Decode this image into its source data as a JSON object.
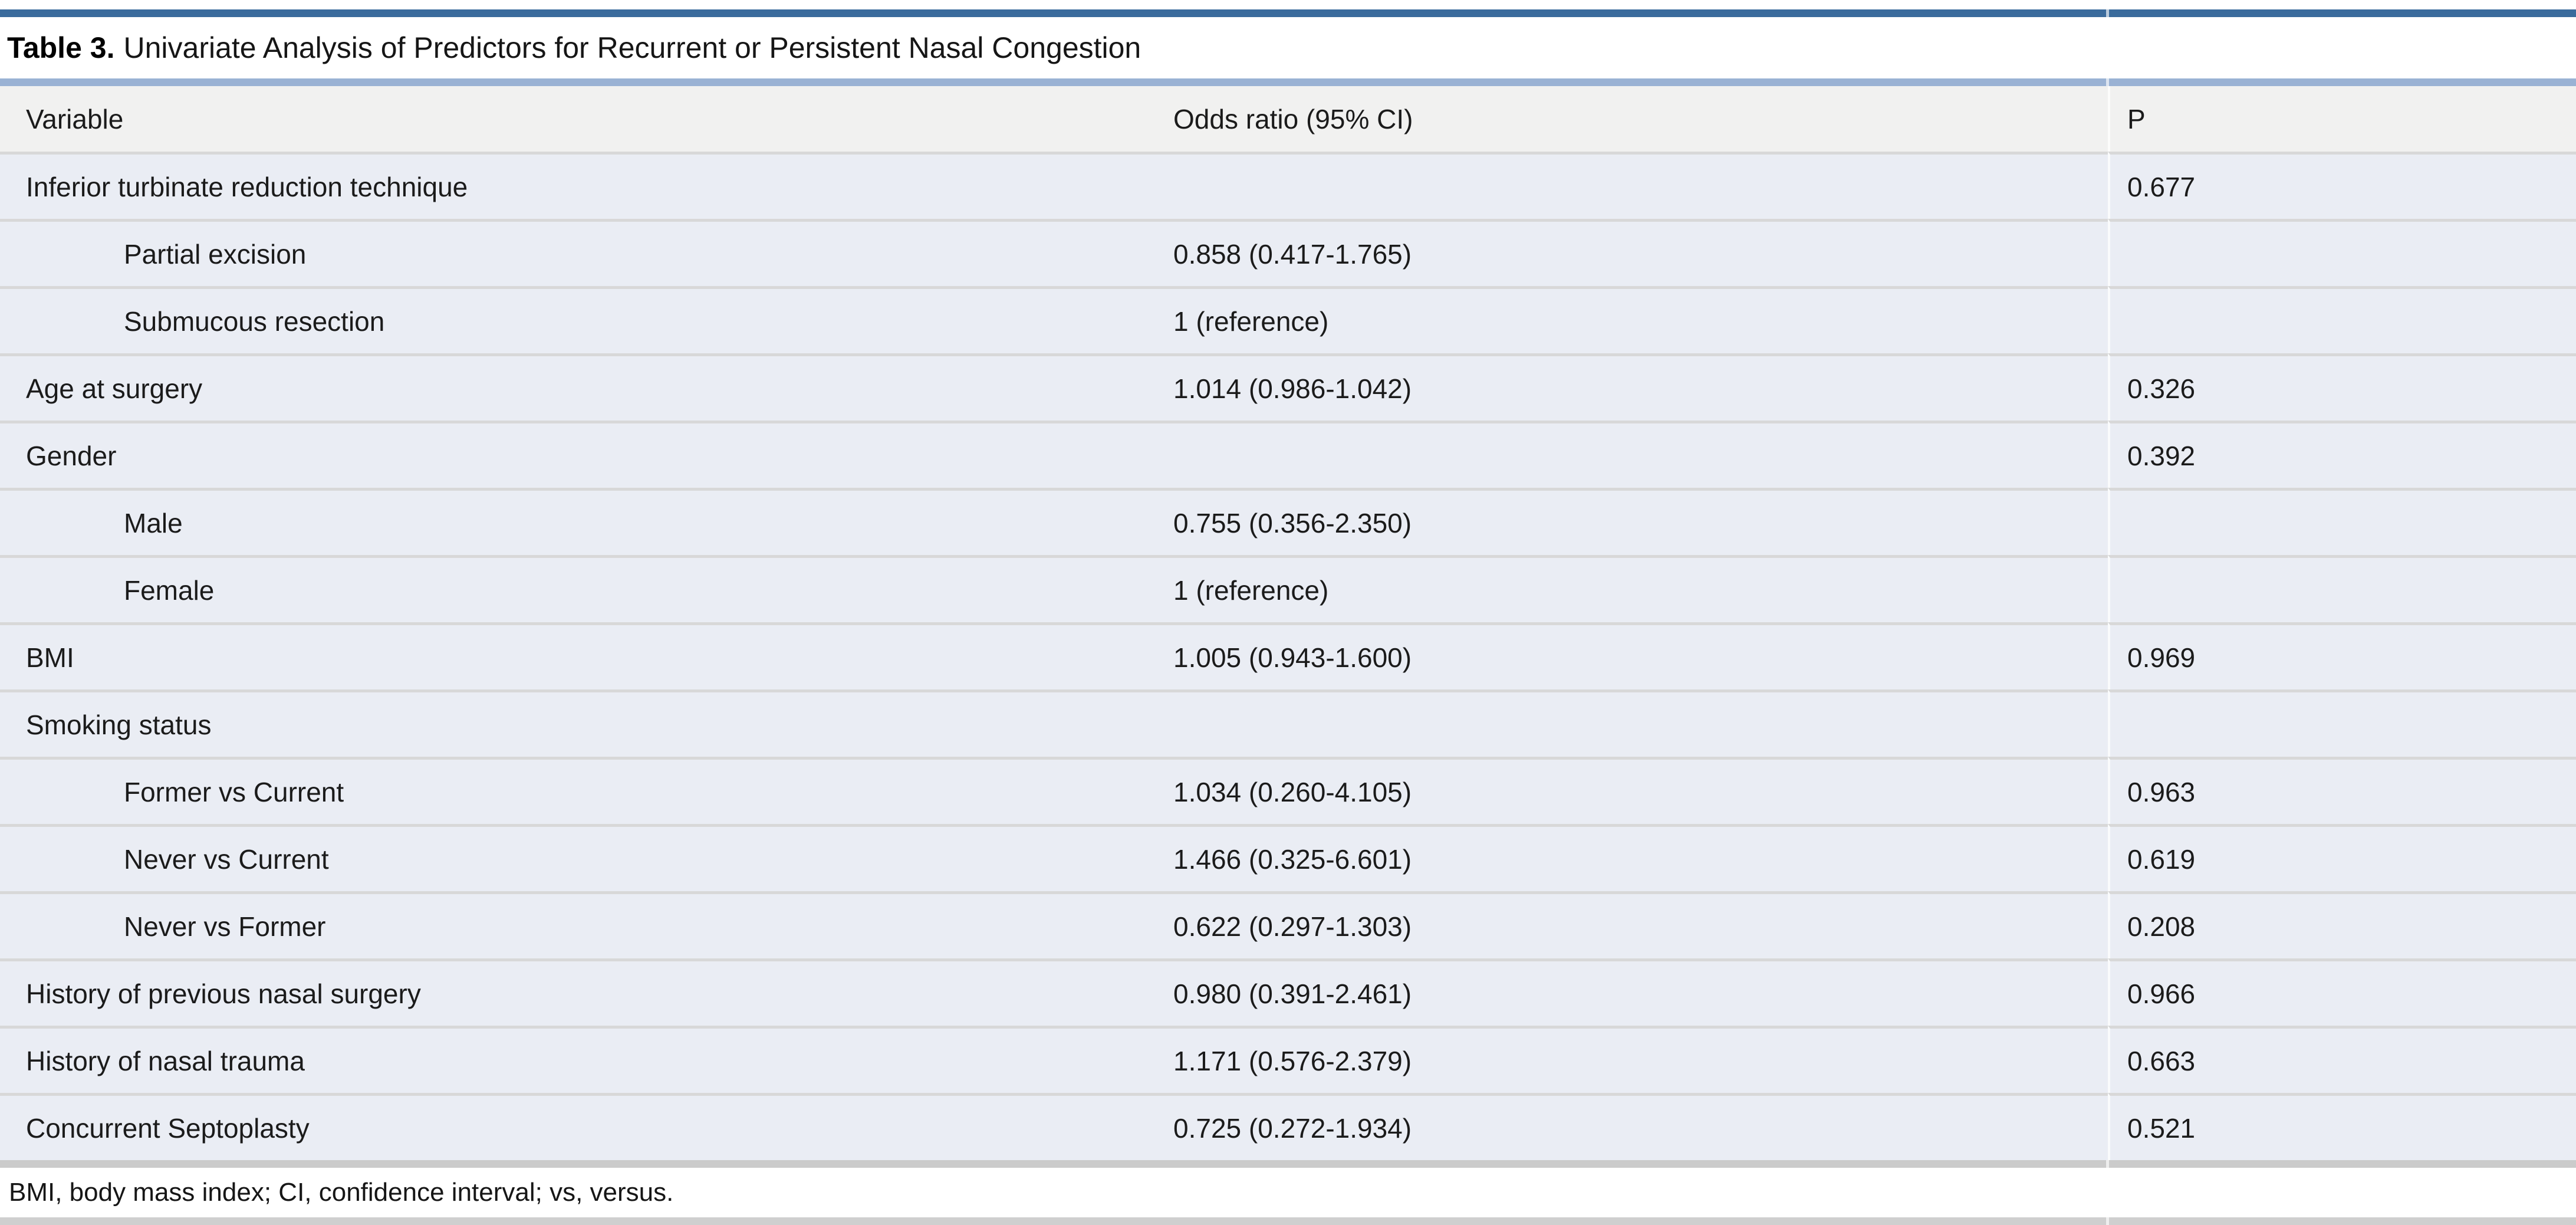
{
  "title": {
    "label": "Table 3.",
    "text": "Univariate Analysis of Predictors for Recurrent or Persistent Nasal Congestion"
  },
  "columns": [
    "Variable",
    "Odds ratio (95% CI)",
    "P"
  ],
  "rows": [
    {
      "variable": "Inferior turbinate reduction technique",
      "indent": false,
      "odds_ratio": "",
      "p": "0.677"
    },
    {
      "variable": "Partial excision",
      "indent": true,
      "odds_ratio": "0.858 (0.417-1.765)",
      "p": ""
    },
    {
      "variable": "Submucous resection",
      "indent": true,
      "odds_ratio": "1 (reference)",
      "p": ""
    },
    {
      "variable": "Age at surgery",
      "indent": false,
      "odds_ratio": "1.014 (0.986-1.042)",
      "p": "0.326"
    },
    {
      "variable": "Gender",
      "indent": false,
      "odds_ratio": "",
      "p": "0.392"
    },
    {
      "variable": "Male",
      "indent": true,
      "odds_ratio": "0.755 (0.356-2.350)",
      "p": ""
    },
    {
      "variable": "Female",
      "indent": true,
      "odds_ratio": "1 (reference)",
      "p": ""
    },
    {
      "variable": "BMI",
      "indent": false,
      "odds_ratio": "1.005 (0.943-1.600)",
      "p": "0.969"
    },
    {
      "variable": "Smoking status",
      "indent": false,
      "odds_ratio": "",
      "p": ""
    },
    {
      "variable": "Former vs Current",
      "indent": true,
      "odds_ratio": "1.034 (0.260-4.105)",
      "p": "0.963"
    },
    {
      "variable": "Never vs Current",
      "indent": true,
      "odds_ratio": "1.466 (0.325-6.601)",
      "p": "0.619"
    },
    {
      "variable": "Never vs Former",
      "indent": true,
      "odds_ratio": "0.622 (0.297-1.303)",
      "p": "0.208"
    },
    {
      "variable": "History of previous nasal surgery",
      "indent": false,
      "odds_ratio": "0.980 (0.391-2.461)",
      "p": "0.966"
    },
    {
      "variable": "History of nasal trauma",
      "indent": false,
      "odds_ratio": "1.171 (0.576-2.379)",
      "p": "0.663"
    },
    {
      "variable": "Concurrent Septoplasty",
      "indent": false,
      "odds_ratio": "0.725 (0.272-1.934)",
      "p": "0.521"
    }
  ],
  "footnote": "BMI, body mass index; CI, confidence interval; vs, versus.",
  "colors": {
    "accent_dark_blue": "#3a6b9c",
    "accent_light_blue": "#9ab2d4",
    "header_bg": "#f1f1f0",
    "row_bg": "#eaedf4",
    "row_separator": "#d8d8d8",
    "divider_gray": "#cbcbcb",
    "bottom_bar_gray": "#cfcfcf"
  }
}
